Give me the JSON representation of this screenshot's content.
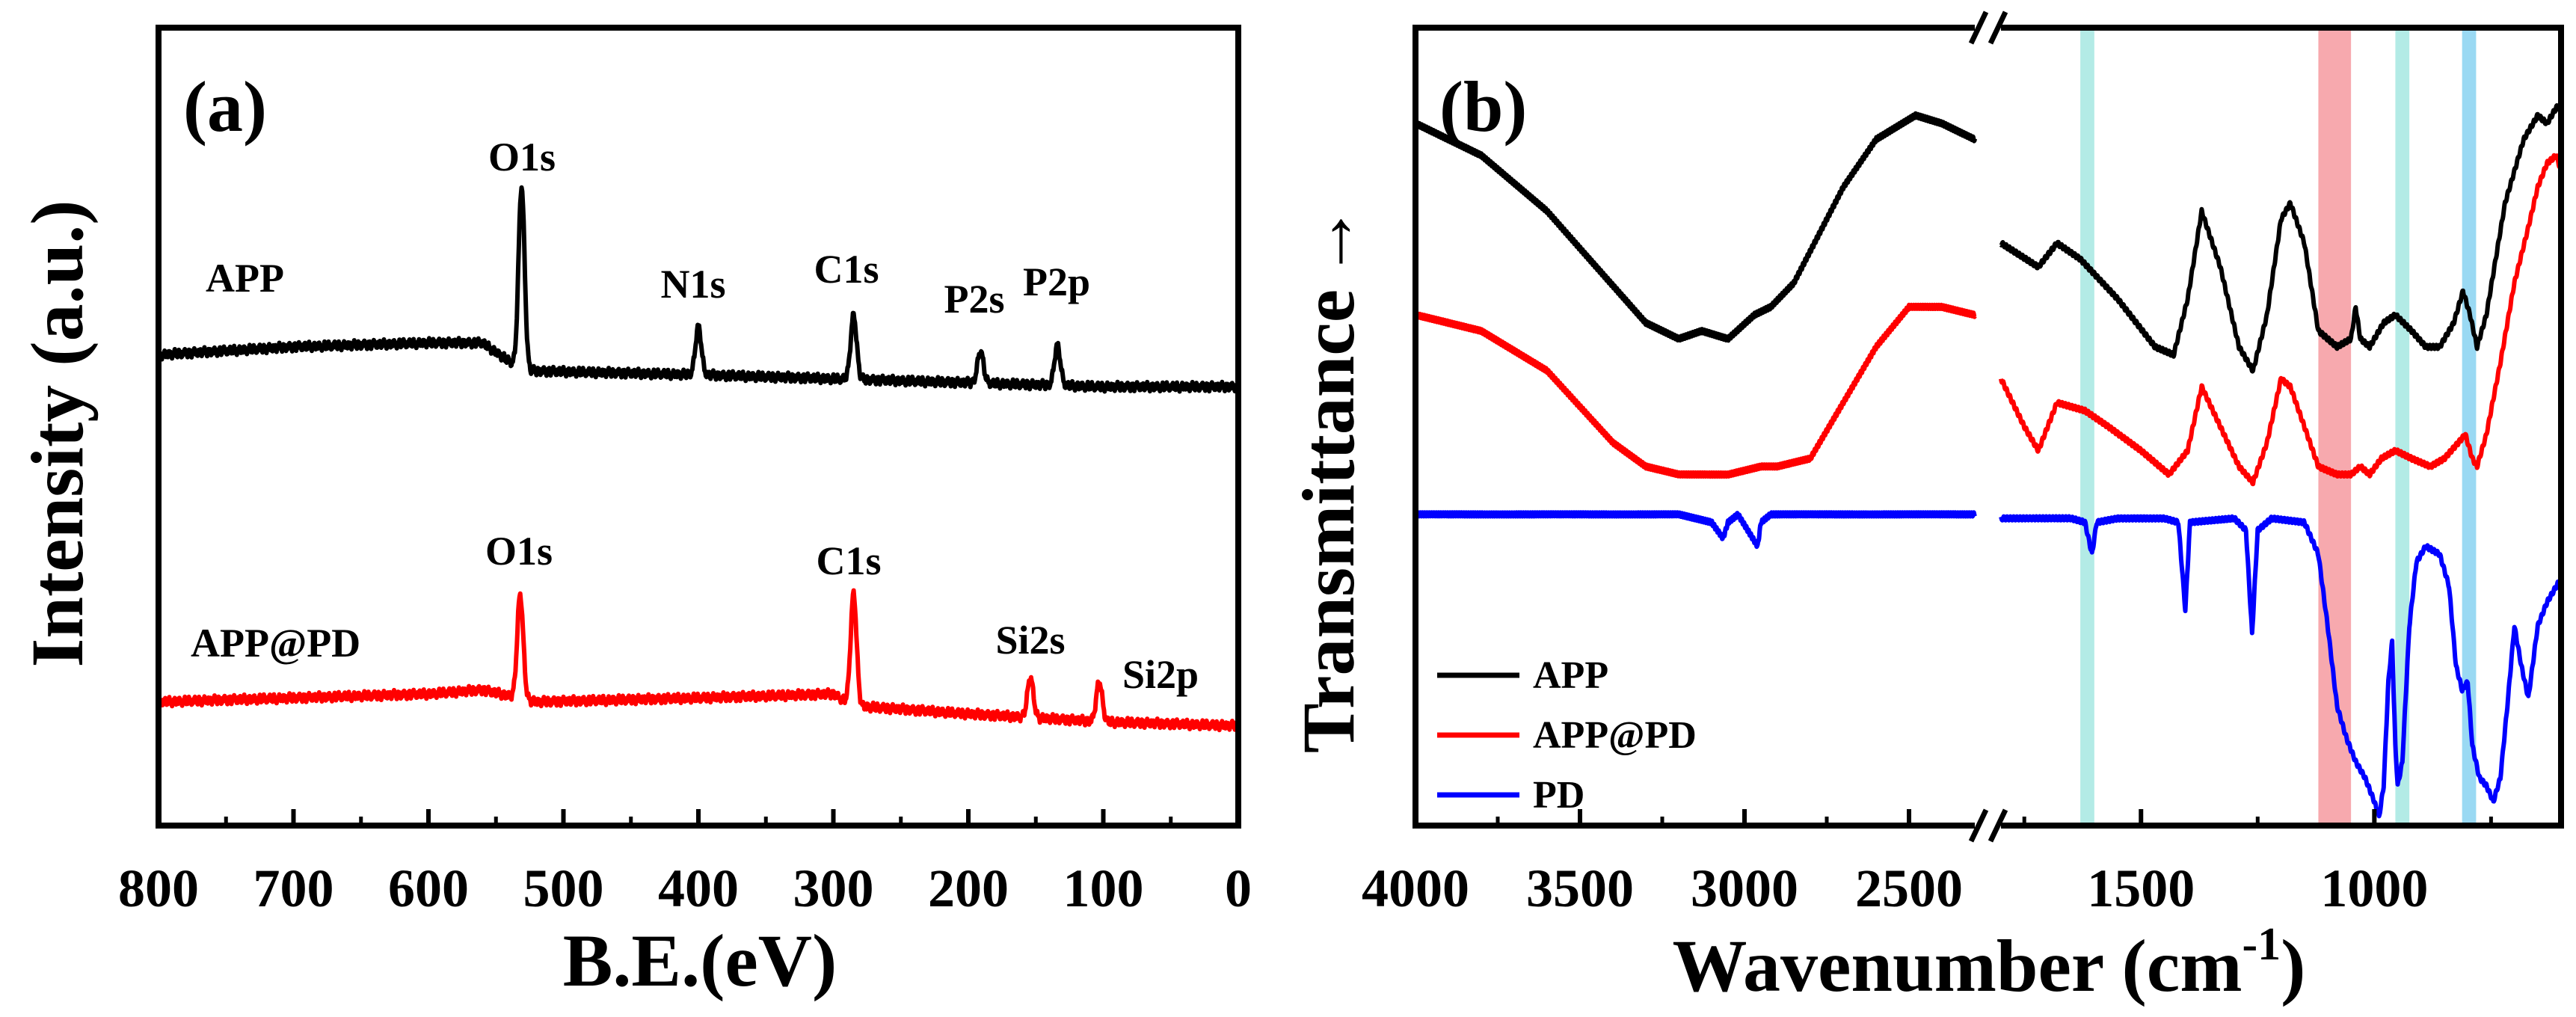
{
  "chart_data": [
    {
      "type": "line",
      "panel_label": "(a)",
      "xlabel": "B.E.(eV)",
      "ylabel": "Intensity (a.u.)",
      "xlim": [
        800,
        0
      ],
      "xticks": [
        800,
        700,
        600,
        500,
        400,
        300,
        200,
        100,
        0
      ],
      "ylim": [
        0,
        1
      ],
      "series": [
        {
          "name": "APP",
          "color": "#000000",
          "baseline": [
            [
              800,
              0.59
            ],
            [
              700,
              0.6
            ],
            [
              600,
              0.605
            ],
            [
              560,
              0.605
            ],
            [
              530,
              0.57
            ],
            [
              400,
              0.565
            ],
            [
              300,
              0.56
            ],
            [
              200,
              0.555
            ],
            [
              100,
              0.55
            ],
            [
              0,
              0.55
            ]
          ],
          "peaks": [
            {
              "name": "O1s",
              "x": 531,
              "height": 0.23
            },
            {
              "name": "N1s",
              "x": 400,
              "height": 0.06
            },
            {
              "name": "C1s",
              "x": 285,
              "height": 0.08
            },
            {
              "name": "P2s",
              "x": 191,
              "height": 0.04
            },
            {
              "name": "P2p",
              "x": 134,
              "height": 0.05
            }
          ]
        },
        {
          "name": "APP@PD",
          "color": "#ff0000",
          "baseline": [
            [
              800,
              0.155
            ],
            [
              700,
              0.16
            ],
            [
              600,
              0.165
            ],
            [
              560,
              0.17
            ],
            [
              520,
              0.155
            ],
            [
              400,
              0.16
            ],
            [
              300,
              0.165
            ],
            [
              285,
              0.15
            ],
            [
              200,
              0.14
            ],
            [
              100,
              0.13
            ],
            [
              0,
              0.125
            ]
          ],
          "peaks": [
            {
              "name": "O1s",
              "x": 532,
              "height": 0.13
            },
            {
              "name": "C1s",
              "x": 285,
              "height": 0.14
            },
            {
              "name": "Si2s",
              "x": 154,
              "height": 0.05
            },
            {
              "name": "Si2p",
              "x": 103,
              "height": 0.05
            }
          ]
        }
      ],
      "annotations": [
        {
          "text": "APP",
          "series": "APP"
        },
        {
          "text": "APP@PD",
          "series": "APP@PD"
        },
        {
          "text": "O1s",
          "x": 531
        },
        {
          "text": "N1s",
          "x": 400
        },
        {
          "text": "C1s",
          "x": 285
        },
        {
          "text": "P2s",
          "x": 191
        },
        {
          "text": "P2p",
          "x": 134
        },
        {
          "text": "O1s",
          "x": 532
        },
        {
          "text": "C1s",
          "x": 285
        },
        {
          "text": "Si2s",
          "x": 154
        },
        {
          "text": "Si2p",
          "x": 103
        }
      ]
    },
    {
      "type": "line",
      "panel_label": "(b)",
      "xlabel": "Wavenumber (cm",
      "xlabel_superscript": "-1",
      "xlabel_suffix": ")",
      "ylabel": "Transmittance",
      "ylabel_arrow": "→",
      "axis_break": true,
      "segments": [
        {
          "xlim": [
            4000,
            2300
          ],
          "xticks": [
            4000,
            3500,
            3000,
            2500
          ]
        },
        {
          "xlim": [
            1800,
            600
          ],
          "xticks": [
            1500,
            1000
          ]
        }
      ],
      "ylim": [
        0,
        100
      ],
      "legend": [
        "APP",
        "APP@PD",
        "PD"
      ],
      "legend_position": "bottom-left",
      "highlight_bands": [
        {
          "from": 1630,
          "to": 1600,
          "color": "#b3ebe6"
        },
        {
          "from": 1120,
          "to": 1050,
          "color": "#f7a9ae"
        },
        {
          "from": 955,
          "to": 925,
          "color": "#b3ebe6"
        },
        {
          "from": 812,
          "to": 782,
          "color": "#9ad9f3"
        }
      ],
      "series": [
        {
          "name": "APP",
          "color": "#000000",
          "points": [
            [
              4000,
              88
            ],
            [
              3800,
              84
            ],
            [
              3600,
              77
            ],
            [
              3450,
              70
            ],
            [
              3300,
              63
            ],
            [
              3200,
              61
            ],
            [
              3130,
              62
            ],
            [
              3050,
              61
            ],
            [
              2970,
              64
            ],
            [
              2920,
              65
            ],
            [
              2850,
              68
            ],
            [
              2700,
              80
            ],
            [
              2600,
              86
            ],
            [
              2480,
              89
            ],
            [
              2400,
              88
            ],
            [
              2300,
              86
            ],
            [
              1800,
              73
            ],
            [
              1720,
              70
            ],
            [
              1680,
              73
            ],
            [
              1630,
              71
            ],
            [
              1550,
              66
            ],
            [
              1470,
              60
            ],
            [
              1430,
              59
            ],
            [
              1400,
              66
            ],
            [
              1370,
              77
            ],
            [
              1330,
              70
            ],
            [
              1290,
              60
            ],
            [
              1260,
              57
            ],
            [
              1230,
              64
            ],
            [
              1200,
              76
            ],
            [
              1180,
              78
            ],
            [
              1150,
              73
            ],
            [
              1120,
              62
            ],
            [
              1080,
              60
            ],
            [
              1050,
              61
            ],
            [
              1040,
              65
            ],
            [
              1030,
              61
            ],
            [
              1010,
              60
            ],
            [
              980,
              63
            ],
            [
              955,
              64
            ],
            [
              920,
              62
            ],
            [
              890,
              60
            ],
            [
              860,
              60
            ],
            [
              830,
              63
            ],
            [
              810,
              67
            ],
            [
              795,
              64
            ],
            [
              780,
              60
            ],
            [
              760,
              64
            ],
            [
              720,
              78
            ],
            [
              680,
              86
            ],
            [
              650,
              89
            ],
            [
              630,
              88
            ],
            [
              610,
              90
            ],
            [
              600,
              90
            ]
          ]
        },
        {
          "name": "APP@PD",
          "color": "#ff0000",
          "points": [
            [
              4000,
              64
            ],
            [
              3800,
              62
            ],
            [
              3600,
              57
            ],
            [
              3400,
              48
            ],
            [
              3300,
              45
            ],
            [
              3200,
              44
            ],
            [
              3050,
              44
            ],
            [
              2950,
              45
            ],
            [
              2900,
              45
            ],
            [
              2800,
              46
            ],
            [
              2700,
              53
            ],
            [
              2600,
              60
            ],
            [
              2500,
              65
            ],
            [
              2400,
              65
            ],
            [
              2300,
              64
            ],
            [
              1800,
              56
            ],
            [
              1750,
              50
            ],
            [
              1720,
              47
            ],
            [
              1680,
              53
            ],
            [
              1620,
              52
            ],
            [
              1570,
              50
            ],
            [
              1500,
              47
            ],
            [
              1440,
              44
            ],
            [
              1400,
              47
            ],
            [
              1370,
              55
            ],
            [
              1330,
              50
            ],
            [
              1290,
              45
            ],
            [
              1260,
              43
            ],
            [
              1230,
              48
            ],
            [
              1200,
              56
            ],
            [
              1180,
              55
            ],
            [
              1150,
              50
            ],
            [
              1120,
              45
            ],
            [
              1080,
              44
            ],
            [
              1050,
              44
            ],
            [
              1030,
              45
            ],
            [
              1010,
              44
            ],
            [
              985,
              46
            ],
            [
              955,
              47
            ],
            [
              920,
              46
            ],
            [
              880,
              45
            ],
            [
              850,
              46
            ],
            [
              820,
              48
            ],
            [
              805,
              49
            ],
            [
              790,
              46
            ],
            [
              780,
              45
            ],
            [
              760,
              49
            ],
            [
              730,
              58
            ],
            [
              700,
              68
            ],
            [
              670,
              75
            ],
            [
              650,
              80
            ],
            [
              630,
              83
            ],
            [
              610,
              84
            ],
            [
              600,
              82
            ]
          ]
        },
        {
          "name": "PD",
          "color": "#0000ff",
          "points": [
            [
              4000,
              39
            ],
            [
              3800,
              39
            ],
            [
              3600,
              39
            ],
            [
              3200,
              39
            ],
            [
              3100,
              38
            ],
            [
              3065,
              36
            ],
            [
              3050,
              38
            ],
            [
              3020,
              39
            ],
            [
              2975,
              36
            ],
            [
              2960,
              35
            ],
            [
              2950,
              38
            ],
            [
              2920,
              39
            ],
            [
              2800,
              39
            ],
            [
              2600,
              39
            ],
            [
              2400,
              39
            ],
            [
              2300,
              39
            ],
            [
              1800,
              38.5
            ],
            [
              1650,
              38.5
            ],
            [
              1620,
              38
            ],
            [
              1605,
              34
            ],
            [
              1595,
              38
            ],
            [
              1550,
              38.5
            ],
            [
              1450,
              38.5
            ],
            [
              1420,
              38
            ],
            [
              1405,
              27
            ],
            [
              1395,
              38
            ],
            [
              1300,
              38.5
            ],
            [
              1275,
              37
            ],
            [
              1262,
              24
            ],
            [
              1250,
              37
            ],
            [
              1220,
              38.5
            ],
            [
              1150,
              38
            ],
            [
              1120,
              34
            ],
            [
              1100,
              25
            ],
            [
              1080,
              15
            ],
            [
              1060,
              11
            ],
            [
              1040,
              8
            ],
            [
              1020,
              6
            ],
            [
              1000,
              3
            ],
            [
              990,
              1
            ],
            [
              980,
              5
            ],
            [
              970,
              18
            ],
            [
              962,
              23
            ],
            [
              955,
              10
            ],
            [
              950,
              5
            ],
            [
              940,
              8
            ],
            [
              925,
              25
            ],
            [
              910,
              33
            ],
            [
              890,
              35
            ],
            [
              860,
              34
            ],
            [
              840,
              30
            ],
            [
              825,
              20
            ],
            [
              812,
              17
            ],
            [
              800,
              18
            ],
            [
              790,
              10
            ],
            [
              775,
              6
            ],
            [
              760,
              5
            ],
            [
              745,
              3
            ],
            [
              730,
              6
            ],
            [
              715,
              15
            ],
            [
              700,
              25
            ],
            [
              685,
              20
            ],
            [
              670,
              16
            ],
            [
              650,
              25
            ],
            [
              630,
              28
            ],
            [
              610,
              30
            ],
            [
              600,
              31
            ]
          ]
        }
      ]
    }
  ]
}
